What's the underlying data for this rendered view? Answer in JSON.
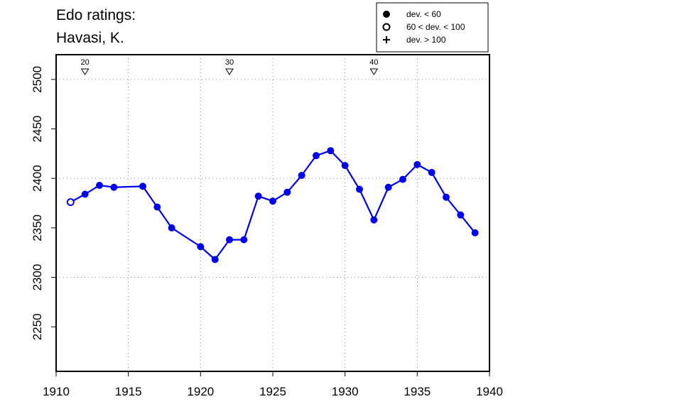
{
  "chart_data": {
    "type": "line",
    "title_line1": "Edo ratings:",
    "title_line2": "Havasi, K.",
    "xlabel": "",
    "ylabel": "",
    "xlim": [
      1910,
      1940
    ],
    "ylim": [
      2205,
      2525
    ],
    "x_ticks": [
      "1910",
      "1915",
      "1920",
      "1925",
      "1930",
      "1935",
      "1940"
    ],
    "y_ticks": [
      "2250",
      "2300",
      "2350",
      "2400",
      "2450",
      "2500"
    ],
    "grid": "dotted",
    "legend_position": "top-right",
    "legend": [
      {
        "symbol": "filled-circle",
        "label": "dev. < 60"
      },
      {
        "symbol": "open-circle",
        "label": "60 < dev. < 100"
      },
      {
        "symbol": "plus",
        "label": "dev. > 100"
      }
    ],
    "age_markers": [
      {
        "year": 1912,
        "label": "20"
      },
      {
        "year": 1922,
        "label": "30"
      },
      {
        "year": 1932,
        "label": "40"
      }
    ],
    "series": [
      {
        "color": "#0000ee",
        "points": [
          {
            "x": 1911,
            "y": 2376,
            "dev": "mid"
          },
          {
            "x": 1912,
            "y": 2384,
            "dev": "low"
          },
          {
            "x": 1913,
            "y": 2393,
            "dev": "low"
          },
          {
            "x": 1914,
            "y": 2391,
            "dev": "low"
          },
          {
            "x": 1916,
            "y": 2392,
            "dev": "low"
          },
          {
            "x": 1917,
            "y": 2371,
            "dev": "low"
          },
          {
            "x": 1918,
            "y": 2350,
            "dev": "low"
          },
          {
            "x": 1920,
            "y": 2331,
            "dev": "low"
          },
          {
            "x": 1921,
            "y": 2318,
            "dev": "low"
          },
          {
            "x": 1922,
            "y": 2338,
            "dev": "low"
          },
          {
            "x": 1923,
            "y": 2338,
            "dev": "low"
          },
          {
            "x": 1924,
            "y": 2382,
            "dev": "low"
          },
          {
            "x": 1925,
            "y": 2377,
            "dev": "low"
          },
          {
            "x": 1926,
            "y": 2386,
            "dev": "low"
          },
          {
            "x": 1927,
            "y": 2403,
            "dev": "low"
          },
          {
            "x": 1928,
            "y": 2423,
            "dev": "low"
          },
          {
            "x": 1929,
            "y": 2428,
            "dev": "low"
          },
          {
            "x": 1930,
            "y": 2413,
            "dev": "low"
          },
          {
            "x": 1931,
            "y": 2389,
            "dev": "low"
          },
          {
            "x": 1932,
            "y": 2358,
            "dev": "low"
          },
          {
            "x": 1933,
            "y": 2391,
            "dev": "low"
          },
          {
            "x": 1934,
            "y": 2399,
            "dev": "low"
          },
          {
            "x": 1935,
            "y": 2414,
            "dev": "low"
          },
          {
            "x": 1936,
            "y": 2406,
            "dev": "low"
          },
          {
            "x": 1937,
            "y": 2381,
            "dev": "low"
          },
          {
            "x": 1938,
            "y": 2363,
            "dev": "low"
          },
          {
            "x": 1939,
            "y": 2345,
            "dev": "low"
          }
        ]
      }
    ]
  }
}
